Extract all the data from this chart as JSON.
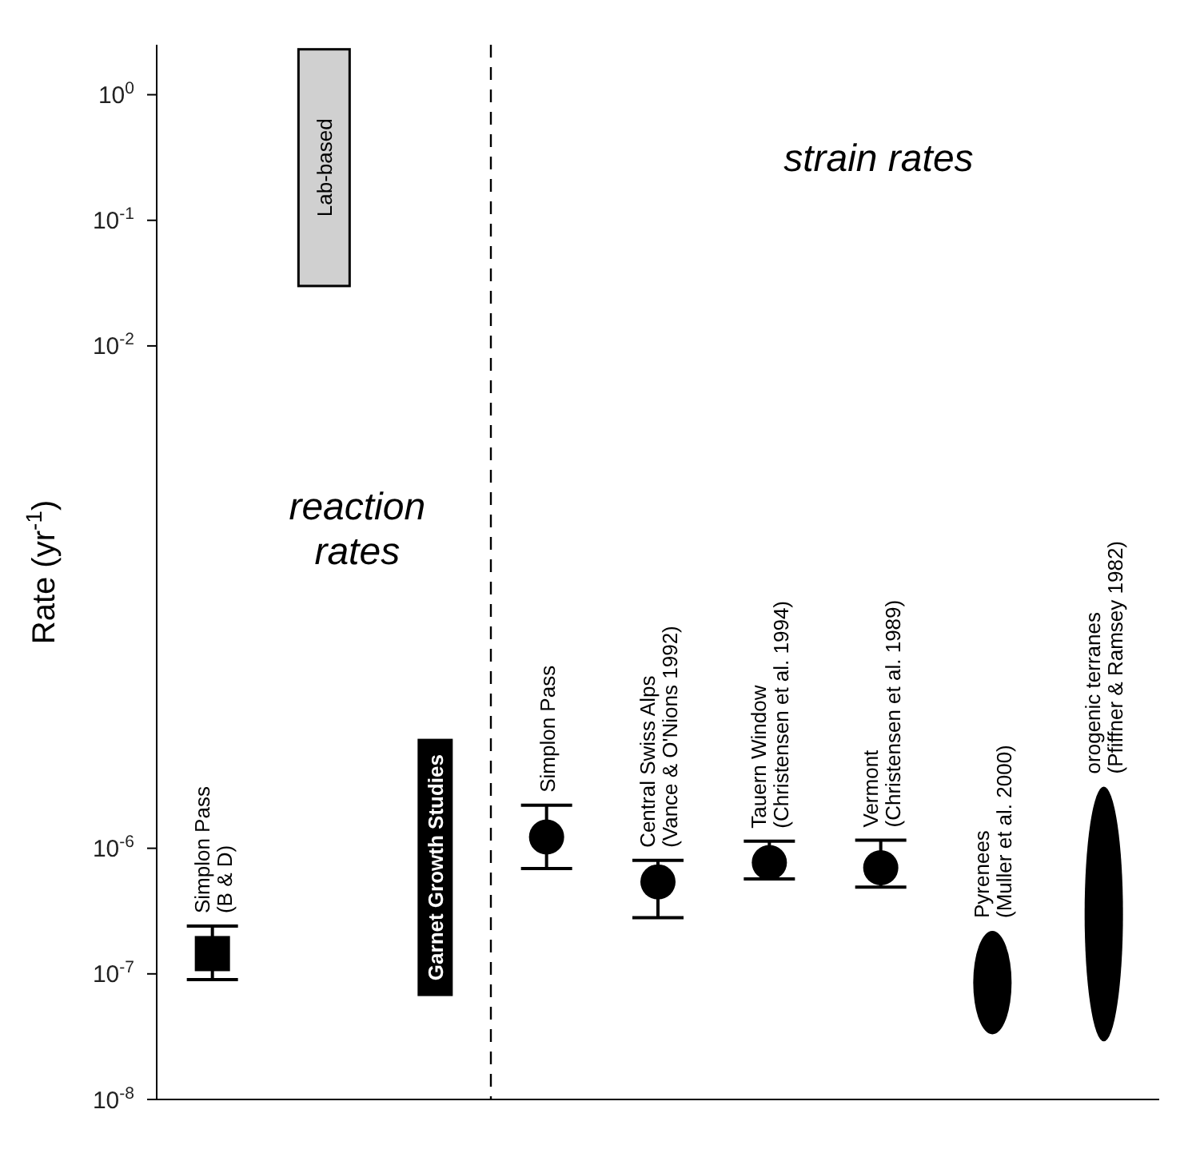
{
  "chart_data": {
    "type": "scatter",
    "ylabel": "Rate (yr$^{-1}$)",
    "log": true,
    "ylim": [
      1e-08,
      2.5
    ],
    "yticks": [
      {
        "value": 1e-08,
        "label": "10$^{-8}$"
      },
      {
        "value": 1e-07,
        "label": "10$^{-7}$"
      },
      {
        "value": 1e-06,
        "label": "10$^{-6}$"
      },
      {
        "value": 0.01,
        "label": "10$^{-2}$"
      },
      {
        "value": 0.1,
        "label": "10$^{-1}$"
      },
      {
        "value": 1,
        "label": "10$^{0}$"
      }
    ],
    "tick_labels": "y",
    "categories": [
      "Simplon Pass\n(B & D)",
      "Lab-based",
      "Garnet Growth Studies",
      "Simplon Pass",
      "Central Swiss Alps\n(Vance & O'Nions 1992)",
      "Tauern Window\n(Christensen et al. 1994)",
      "Vermont\n(Christensen et al. 1989)",
      "Pyrenees\n(Muller et al. 2000)",
      "orogenic terranes\n(Pfiffner & Ramsey 1982)"
    ],
    "series": [
      {
        "marker": "square",
        "color": "#000000",
        "values": [
          1.45e-07,
          null,
          null,
          null,
          null,
          null,
          null,
          null,
          null
        ],
        "errors": [
          [
            9e-08,
            2.4e-07
          ],
          null,
          null,
          null,
          null,
          null,
          null,
          null,
          null
        ]
      },
      {
        "marker": "circle",
        "color": "#000000",
        "values": [
          null,
          null,
          null,
          1.23e-06,
          5.4e-07,
          7.7e-07,
          7e-07,
          null,
          null
        ],
        "errors": [
          null,
          null,
          null,
          [
            6.9e-07,
            2.2e-06
          ],
          [
            2.8e-07,
            8e-07
          ],
          [
            5.7e-07,
            1.14e-06
          ],
          [
            4.9e-07,
            1.16e-06
          ],
          null,
          null
        ]
      },
      {
        "type": "bar",
        "color": "#d0d0d0",
        "values": [
          null,
          2.27,
          null,
          null,
          null,
          null,
          null,
          null,
          null
        ],
        "base": [
          null,
          0.03,
          null,
          null,
          null,
          null,
          null,
          null,
          null
        ]
      },
      {
        "type": "bar",
        "marker": "circle",
        "color": "#000000",
        "values": [
          null,
          null,
          null,
          null,
          null,
          null,
          null,
          1.87e-07,
          3.071e-06
        ],
        "base": [
          null,
          null,
          null,
          null,
          null,
          null,
          null,
          3.3e-08,
          2.9e-08
        ]
      }
    ],
    "annotations": [
      "strain rates",
      "reaction rates"
    ]
  }
}
